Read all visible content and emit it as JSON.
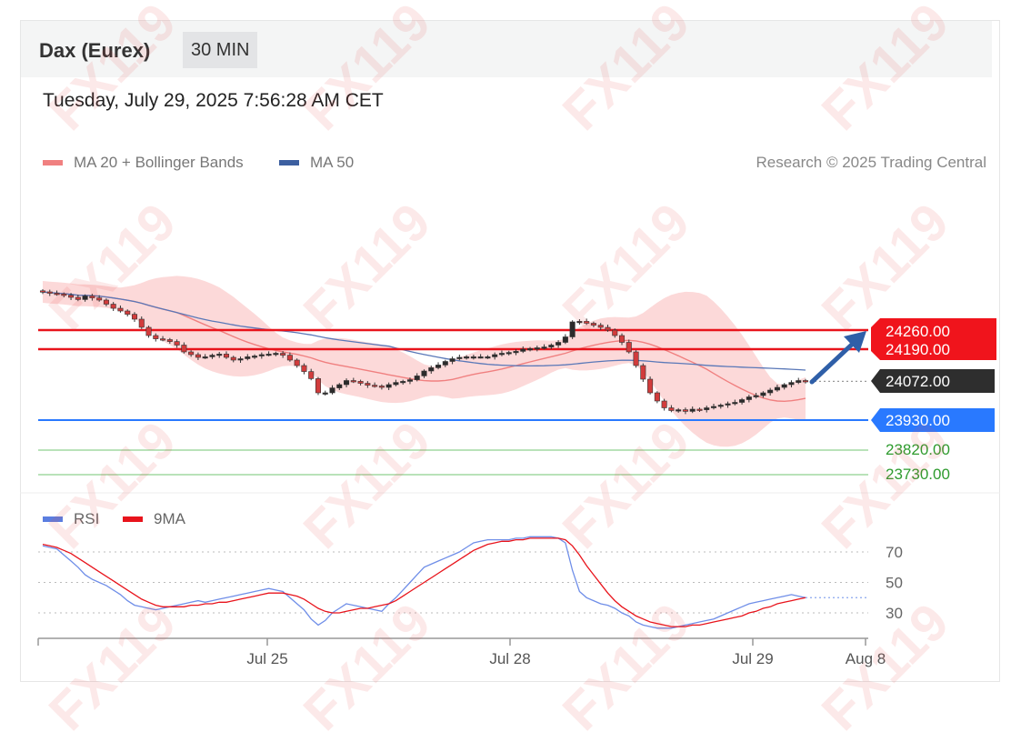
{
  "header": {
    "instrument": "Dax (Eurex)",
    "timeframe": "30 MIN"
  },
  "datetime": "Tuesday, July 29, 2025 7:56:28 AM CET",
  "legend": {
    "ma20": {
      "label": "MA 20 + Bollinger Bands",
      "color": "#f08080"
    },
    "ma50": {
      "label": "MA 50",
      "color": "#3c5fa0"
    }
  },
  "credit": "Research © 2025 Trading Central",
  "watermark": "FX119",
  "levels": [
    {
      "value": "24260.00",
      "role": "resistance",
      "color": "#e8141c"
    },
    {
      "value": "24190.00",
      "role": "resistance",
      "color": "#e8141c"
    },
    {
      "value": "24072.00",
      "role": "last",
      "color": "#2b2b2b"
    },
    {
      "value": "23930.00",
      "role": "pivot",
      "color": "#2979ff"
    },
    {
      "value": "23820.00",
      "role": "support",
      "color": "#2e9b2e"
    },
    {
      "value": "23730.00",
      "role": "support",
      "color": "#2e9b2e"
    }
  ],
  "rsi_legend": {
    "rsi": {
      "label": "RSI",
      "color": "#5b7ee0"
    },
    "ma9": {
      "label": "9MA",
      "color": "#e8141c"
    }
  },
  "rsi_levels": [
    "70",
    "50",
    "30"
  ],
  "x_ticks": [
    "Jul 25",
    "Jul 28",
    "Jul 29",
    "Aug 8"
  ],
  "chart_data": {
    "type": "candlestick",
    "interval": "30 MIN",
    "x_ticks": [
      "Jul 25",
      "Jul 28",
      "Jul 29",
      "Aug 8"
    ],
    "price_levels": [
      24260,
      24190,
      24072,
      23930,
      23820,
      23730
    ],
    "close": [
      24400,
      24395,
      24392,
      24388,
      24380,
      24372,
      24385,
      24378,
      24370,
      24355,
      24340,
      24330,
      24318,
      24300,
      24270,
      24240,
      24228,
      24225,
      24218,
      24205,
      24180,
      24170,
      24160,
      24162,
      24168,
      24172,
      24160,
      24150,
      24155,
      24162,
      24165,
      24170,
      24172,
      24175,
      24168,
      24150,
      24130,
      24108,
      24082,
      24030,
      24030,
      24048,
      24060,
      24075,
      24072,
      24065,
      24058,
      24055,
      24050,
      24060,
      24068,
      24072,
      24078,
      24092,
      24110,
      24122,
      24132,
      24145,
      24155,
      24160,
      24162,
      24162,
      24162,
      24162,
      24170,
      24175,
      24178,
      24182,
      24190,
      24192,
      24195,
      24198,
      24205,
      24215,
      24235,
      24290,
      24292,
      24285,
      24278,
      24270,
      24260,
      24240,
      24215,
      24180,
      24130,
      24080,
      24030,
      24000,
      23975,
      23965,
      23968,
      23962,
      23970,
      23968,
      23975,
      23980,
      23985,
      23990,
      23995,
      24005,
      24015,
      24020,
      24030,
      24040,
      24050,
      24060,
      24068,
      24075,
      24072
    ],
    "rsi": [
      74,
      73,
      72,
      68,
      64,
      60,
      55,
      52,
      50,
      48,
      45,
      42,
      38,
      35,
      34,
      33,
      32,
      33,
      34,
      35,
      36,
      37,
      38,
      37,
      38,
      39,
      40,
      41,
      42,
      43,
      44,
      45,
      46,
      45,
      44,
      40,
      36,
      32,
      26,
      22,
      25,
      30,
      33,
      36,
      35,
      34,
      33,
      32,
      31,
      36,
      40,
      45,
      50,
      55,
      60,
      62,
      64,
      66,
      68,
      70,
      73,
      76,
      77,
      78,
      78,
      78,
      78,
      79,
      79,
      80,
      80,
      80,
      80,
      79,
      76,
      58,
      44,
      40,
      38,
      36,
      35,
      33,
      30,
      28,
      24,
      22,
      21,
      20,
      20,
      20,
      21,
      22,
      23,
      24,
      25,
      26,
      28,
      30,
      32,
      34,
      36,
      37,
      38,
      39,
      40,
      41,
      42,
      41,
      40
    ],
    "rsi_ma9": [
      75,
      74,
      73,
      71,
      69,
      66,
      63,
      60,
      57,
      54,
      51,
      48,
      45,
      42,
      39,
      37,
      35,
      34,
      34,
      34,
      34,
      35,
      35,
      36,
      36,
      37,
      37,
      38,
      39,
      40,
      41,
      42,
      43,
      43,
      43,
      42,
      41,
      39,
      36,
      33,
      31,
      30,
      30,
      31,
      32,
      33,
      33,
      34,
      35,
      36,
      38,
      41,
      44,
      47,
      50,
      53,
      56,
      59,
      62,
      65,
      68,
      71,
      73,
      75,
      76,
      77,
      77,
      78,
      78,
      79,
      79,
      79,
      79,
      79,
      78,
      74,
      68,
      61,
      55,
      49,
      43,
      38,
      34,
      31,
      28,
      26,
      24,
      23,
      22,
      21,
      21,
      21,
      22,
      22,
      23,
      24,
      25,
      26,
      27,
      28,
      30,
      31,
      33,
      34,
      36,
      37,
      38,
      39,
      40
    ],
    "rsi_ylim": [
      15,
      85
    ]
  }
}
